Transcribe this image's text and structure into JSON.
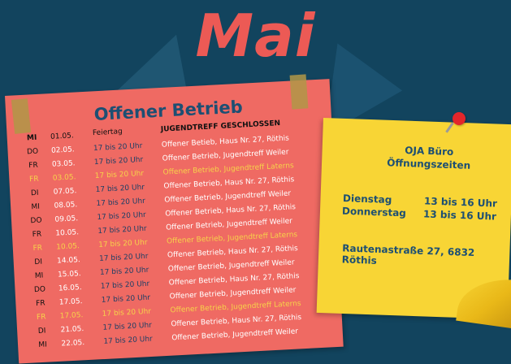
{
  "title": "Mai",
  "schedule": {
    "title": "Offener Betrieb",
    "header": {
      "feiertag": "Feiertag",
      "geschlossen": "JUGENDTREFF GESCHLOSSEN"
    },
    "rows": [
      {
        "day": "MI",
        "date": "01.05.",
        "time": "",
        "desc": ""
      },
      {
        "day": "DO",
        "date": "02.05.",
        "time": "17 bis 20 Uhr",
        "desc": "Offener Betieb, Haus Nr. 27, Röthis"
      },
      {
        "day": "FR",
        "date": "03.05.",
        "time": "17 bis 20 Uhr",
        "desc": "Offener Betrieb, Jugendtreff Weiler"
      },
      {
        "day": "FR",
        "date": "03.05.",
        "time": "17 bis 20 Uhr",
        "desc": "Offener Betrieb, Jugendtreff Laterns"
      },
      {
        "day": "DI",
        "date": "07.05.",
        "time": "17 bis 20 Uhr",
        "desc": "Offener Betrieb, Haus Nr. 27, Röthis"
      },
      {
        "day": "MI",
        "date": "08.05.",
        "time": "17 bis 20 Uhr",
        "desc": "Offener Betrieb, Jugendtreff Weiler"
      },
      {
        "day": "DO",
        "date": "09.05.",
        "time": "17 bis 20 Uhr",
        "desc": "Offener Betrieb, Haus Nr. 27, Röthis"
      },
      {
        "day": "FR",
        "date": "10.05.",
        "time": "17 bis 20 Uhr",
        "desc": "Offener Betrieb, Jugendtreff Weiler"
      },
      {
        "day": "FR",
        "date": "10.05.",
        "time": "17 bis 20 Uhr",
        "desc": "Offener Betrieb, Jugendtreff Laterns"
      },
      {
        "day": "DI",
        "date": "14.05.",
        "time": "17 bis 20 Uhr",
        "desc": "Offener Betrieb, Haus Nr. 27, Röthis"
      },
      {
        "day": "MI",
        "date": "15.05.",
        "time": "17 bis 20 Uhr",
        "desc": "Offener Betrieb, Jugendtreff Weiler"
      },
      {
        "day": "DO",
        "date": "16.05.",
        "time": "17 bis 20 Uhr",
        "desc": "Offener Betrieb, Haus Nr. 27, Röthis"
      },
      {
        "day": "FR",
        "date": "17.05.",
        "time": "17 bis 20 Uhr",
        "desc": "Offener Betrieb, Jugendtreff Weiler"
      },
      {
        "day": "FR",
        "date": "17.05.",
        "time": "17 bis 20 Uhr",
        "desc": "Offener Betrieb, Jugendtreff Laterns"
      },
      {
        "day": "DI",
        "date": "21.05.",
        "time": "17 bis 20 Uhr",
        "desc": "Offener Betrieb, Haus Nr. 27, Röthis"
      },
      {
        "day": "MI",
        "date": "22.05.",
        "time": "17 bis 20 Uhr",
        "desc": "Offener Betrieb, Jugendtreff Weiler"
      }
    ]
  },
  "office": {
    "title_line1": "OJA Büro",
    "title_line2": "Öffnungszeiten",
    "day1": "Dienstag",
    "time1": "13 bis 16 Uhr",
    "day2": "Donnerstag",
    "time2": "13 bis 16 Uhr",
    "address": "Rautenastraße 27, 6832 Röthis"
  },
  "colors": {
    "background": "#12445e",
    "accent_red": "#ec5a55",
    "note_red": "#ef6a63",
    "note_yellow": "#f8d535",
    "navy_text": "#1d4f73",
    "friday_yellow": "#f6d24a"
  }
}
